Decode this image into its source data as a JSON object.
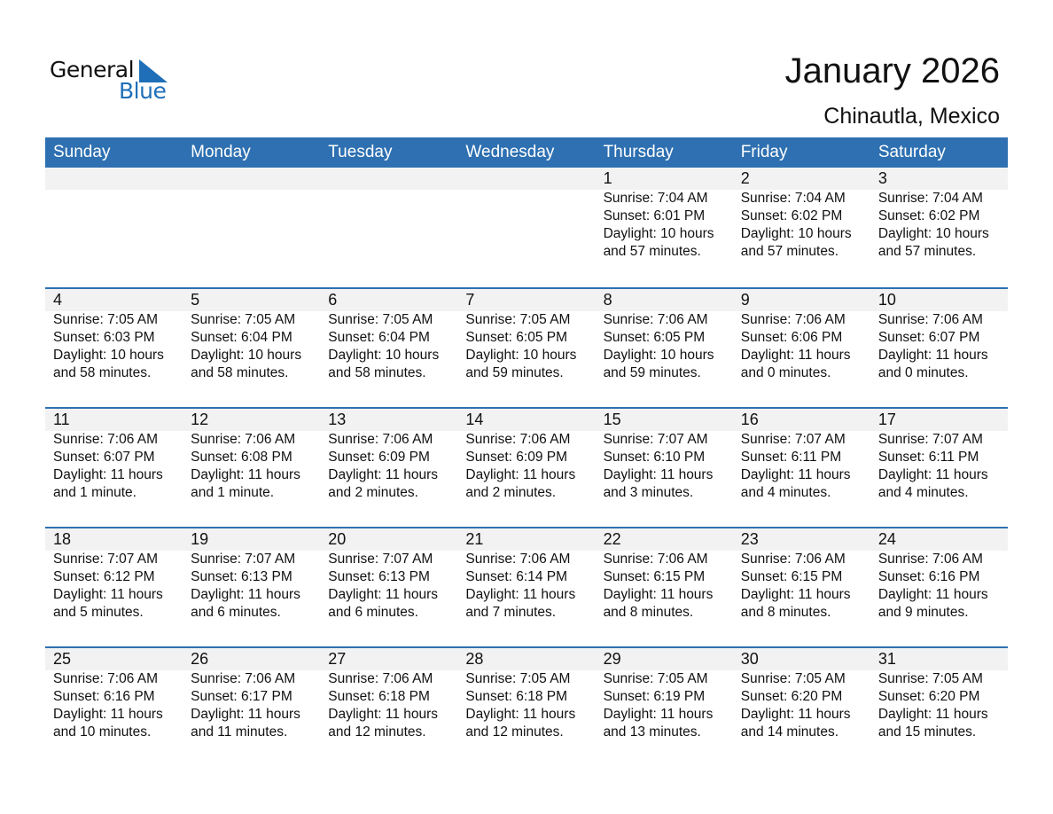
{
  "logo": {
    "word1": "General",
    "word2": "Blue",
    "accent": "#1f6fb8"
  },
  "title": "January 2026",
  "location": "Chinautla, Mexico",
  "colors": {
    "header": "#2e70b1",
    "band": "#f2f2f2"
  },
  "weekdays": [
    "Sunday",
    "Monday",
    "Tuesday",
    "Wednesday",
    "Thursday",
    "Friday",
    "Saturday"
  ],
  "weeks": [
    [
      null,
      null,
      null,
      null,
      {
        "day": "1",
        "sunrise": "Sunrise: 7:04 AM",
        "sunset": "Sunset: 6:01 PM",
        "daylight1": "Daylight: 10 hours",
        "daylight2": "and 57 minutes."
      },
      {
        "day": "2",
        "sunrise": "Sunrise: 7:04 AM",
        "sunset": "Sunset: 6:02 PM",
        "daylight1": "Daylight: 10 hours",
        "daylight2": "and 57 minutes."
      },
      {
        "day": "3",
        "sunrise": "Sunrise: 7:04 AM",
        "sunset": "Sunset: 6:02 PM",
        "daylight1": "Daylight: 10 hours",
        "daylight2": "and 57 minutes."
      }
    ],
    [
      {
        "day": "4",
        "sunrise": "Sunrise: 7:05 AM",
        "sunset": "Sunset: 6:03 PM",
        "daylight1": "Daylight: 10 hours",
        "daylight2": "and 58 minutes."
      },
      {
        "day": "5",
        "sunrise": "Sunrise: 7:05 AM",
        "sunset": "Sunset: 6:04 PM",
        "daylight1": "Daylight: 10 hours",
        "daylight2": "and 58 minutes."
      },
      {
        "day": "6",
        "sunrise": "Sunrise: 7:05 AM",
        "sunset": "Sunset: 6:04 PM",
        "daylight1": "Daylight: 10 hours",
        "daylight2": "and 58 minutes."
      },
      {
        "day": "7",
        "sunrise": "Sunrise: 7:05 AM",
        "sunset": "Sunset: 6:05 PM",
        "daylight1": "Daylight: 10 hours",
        "daylight2": "and 59 minutes."
      },
      {
        "day": "8",
        "sunrise": "Sunrise: 7:06 AM",
        "sunset": "Sunset: 6:05 PM",
        "daylight1": "Daylight: 10 hours",
        "daylight2": "and 59 minutes."
      },
      {
        "day": "9",
        "sunrise": "Sunrise: 7:06 AM",
        "sunset": "Sunset: 6:06 PM",
        "daylight1": "Daylight: 11 hours",
        "daylight2": "and 0 minutes."
      },
      {
        "day": "10",
        "sunrise": "Sunrise: 7:06 AM",
        "sunset": "Sunset: 6:07 PM",
        "daylight1": "Daylight: 11 hours",
        "daylight2": "and 0 minutes."
      }
    ],
    [
      {
        "day": "11",
        "sunrise": "Sunrise: 7:06 AM",
        "sunset": "Sunset: 6:07 PM",
        "daylight1": "Daylight: 11 hours",
        "daylight2": "and 1 minute."
      },
      {
        "day": "12",
        "sunrise": "Sunrise: 7:06 AM",
        "sunset": "Sunset: 6:08 PM",
        "daylight1": "Daylight: 11 hours",
        "daylight2": "and 1 minute."
      },
      {
        "day": "13",
        "sunrise": "Sunrise: 7:06 AM",
        "sunset": "Sunset: 6:09 PM",
        "daylight1": "Daylight: 11 hours",
        "daylight2": "and 2 minutes."
      },
      {
        "day": "14",
        "sunrise": "Sunrise: 7:06 AM",
        "sunset": "Sunset: 6:09 PM",
        "daylight1": "Daylight: 11 hours",
        "daylight2": "and 2 minutes."
      },
      {
        "day": "15",
        "sunrise": "Sunrise: 7:07 AM",
        "sunset": "Sunset: 6:10 PM",
        "daylight1": "Daylight: 11 hours",
        "daylight2": "and 3 minutes."
      },
      {
        "day": "16",
        "sunrise": "Sunrise: 7:07 AM",
        "sunset": "Sunset: 6:11 PM",
        "daylight1": "Daylight: 11 hours",
        "daylight2": "and 4 minutes."
      },
      {
        "day": "17",
        "sunrise": "Sunrise: 7:07 AM",
        "sunset": "Sunset: 6:11 PM",
        "daylight1": "Daylight: 11 hours",
        "daylight2": "and 4 minutes."
      }
    ],
    [
      {
        "day": "18",
        "sunrise": "Sunrise: 7:07 AM",
        "sunset": "Sunset: 6:12 PM",
        "daylight1": "Daylight: 11 hours",
        "daylight2": "and 5 minutes."
      },
      {
        "day": "19",
        "sunrise": "Sunrise: 7:07 AM",
        "sunset": "Sunset: 6:13 PM",
        "daylight1": "Daylight: 11 hours",
        "daylight2": "and 6 minutes."
      },
      {
        "day": "20",
        "sunrise": "Sunrise: 7:07 AM",
        "sunset": "Sunset: 6:13 PM",
        "daylight1": "Daylight: 11 hours",
        "daylight2": "and 6 minutes."
      },
      {
        "day": "21",
        "sunrise": "Sunrise: 7:06 AM",
        "sunset": "Sunset: 6:14 PM",
        "daylight1": "Daylight: 11 hours",
        "daylight2": "and 7 minutes."
      },
      {
        "day": "22",
        "sunrise": "Sunrise: 7:06 AM",
        "sunset": "Sunset: 6:15 PM",
        "daylight1": "Daylight: 11 hours",
        "daylight2": "and 8 minutes."
      },
      {
        "day": "23",
        "sunrise": "Sunrise: 7:06 AM",
        "sunset": "Sunset: 6:15 PM",
        "daylight1": "Daylight: 11 hours",
        "daylight2": "and 8 minutes."
      },
      {
        "day": "24",
        "sunrise": "Sunrise: 7:06 AM",
        "sunset": "Sunset: 6:16 PM",
        "daylight1": "Daylight: 11 hours",
        "daylight2": "and 9 minutes."
      }
    ],
    [
      {
        "day": "25",
        "sunrise": "Sunrise: 7:06 AM",
        "sunset": "Sunset: 6:16 PM",
        "daylight1": "Daylight: 11 hours",
        "daylight2": "and 10 minutes."
      },
      {
        "day": "26",
        "sunrise": "Sunrise: 7:06 AM",
        "sunset": "Sunset: 6:17 PM",
        "daylight1": "Daylight: 11 hours",
        "daylight2": "and 11 minutes."
      },
      {
        "day": "27",
        "sunrise": "Sunrise: 7:06 AM",
        "sunset": "Sunset: 6:18 PM",
        "daylight1": "Daylight: 11 hours",
        "daylight2": "and 12 minutes."
      },
      {
        "day": "28",
        "sunrise": "Sunrise: 7:05 AM",
        "sunset": "Sunset: 6:18 PM",
        "daylight1": "Daylight: 11 hours",
        "daylight2": "and 12 minutes."
      },
      {
        "day": "29",
        "sunrise": "Sunrise: 7:05 AM",
        "sunset": "Sunset: 6:19 PM",
        "daylight1": "Daylight: 11 hours",
        "daylight2": "and 13 minutes."
      },
      {
        "day": "30",
        "sunrise": "Sunrise: 7:05 AM",
        "sunset": "Sunset: 6:20 PM",
        "daylight1": "Daylight: 11 hours",
        "daylight2": "and 14 minutes."
      },
      {
        "day": "31",
        "sunrise": "Sunrise: 7:05 AM",
        "sunset": "Sunset: 6:20 PM",
        "daylight1": "Daylight: 11 hours",
        "daylight2": "and 15 minutes."
      }
    ]
  ]
}
